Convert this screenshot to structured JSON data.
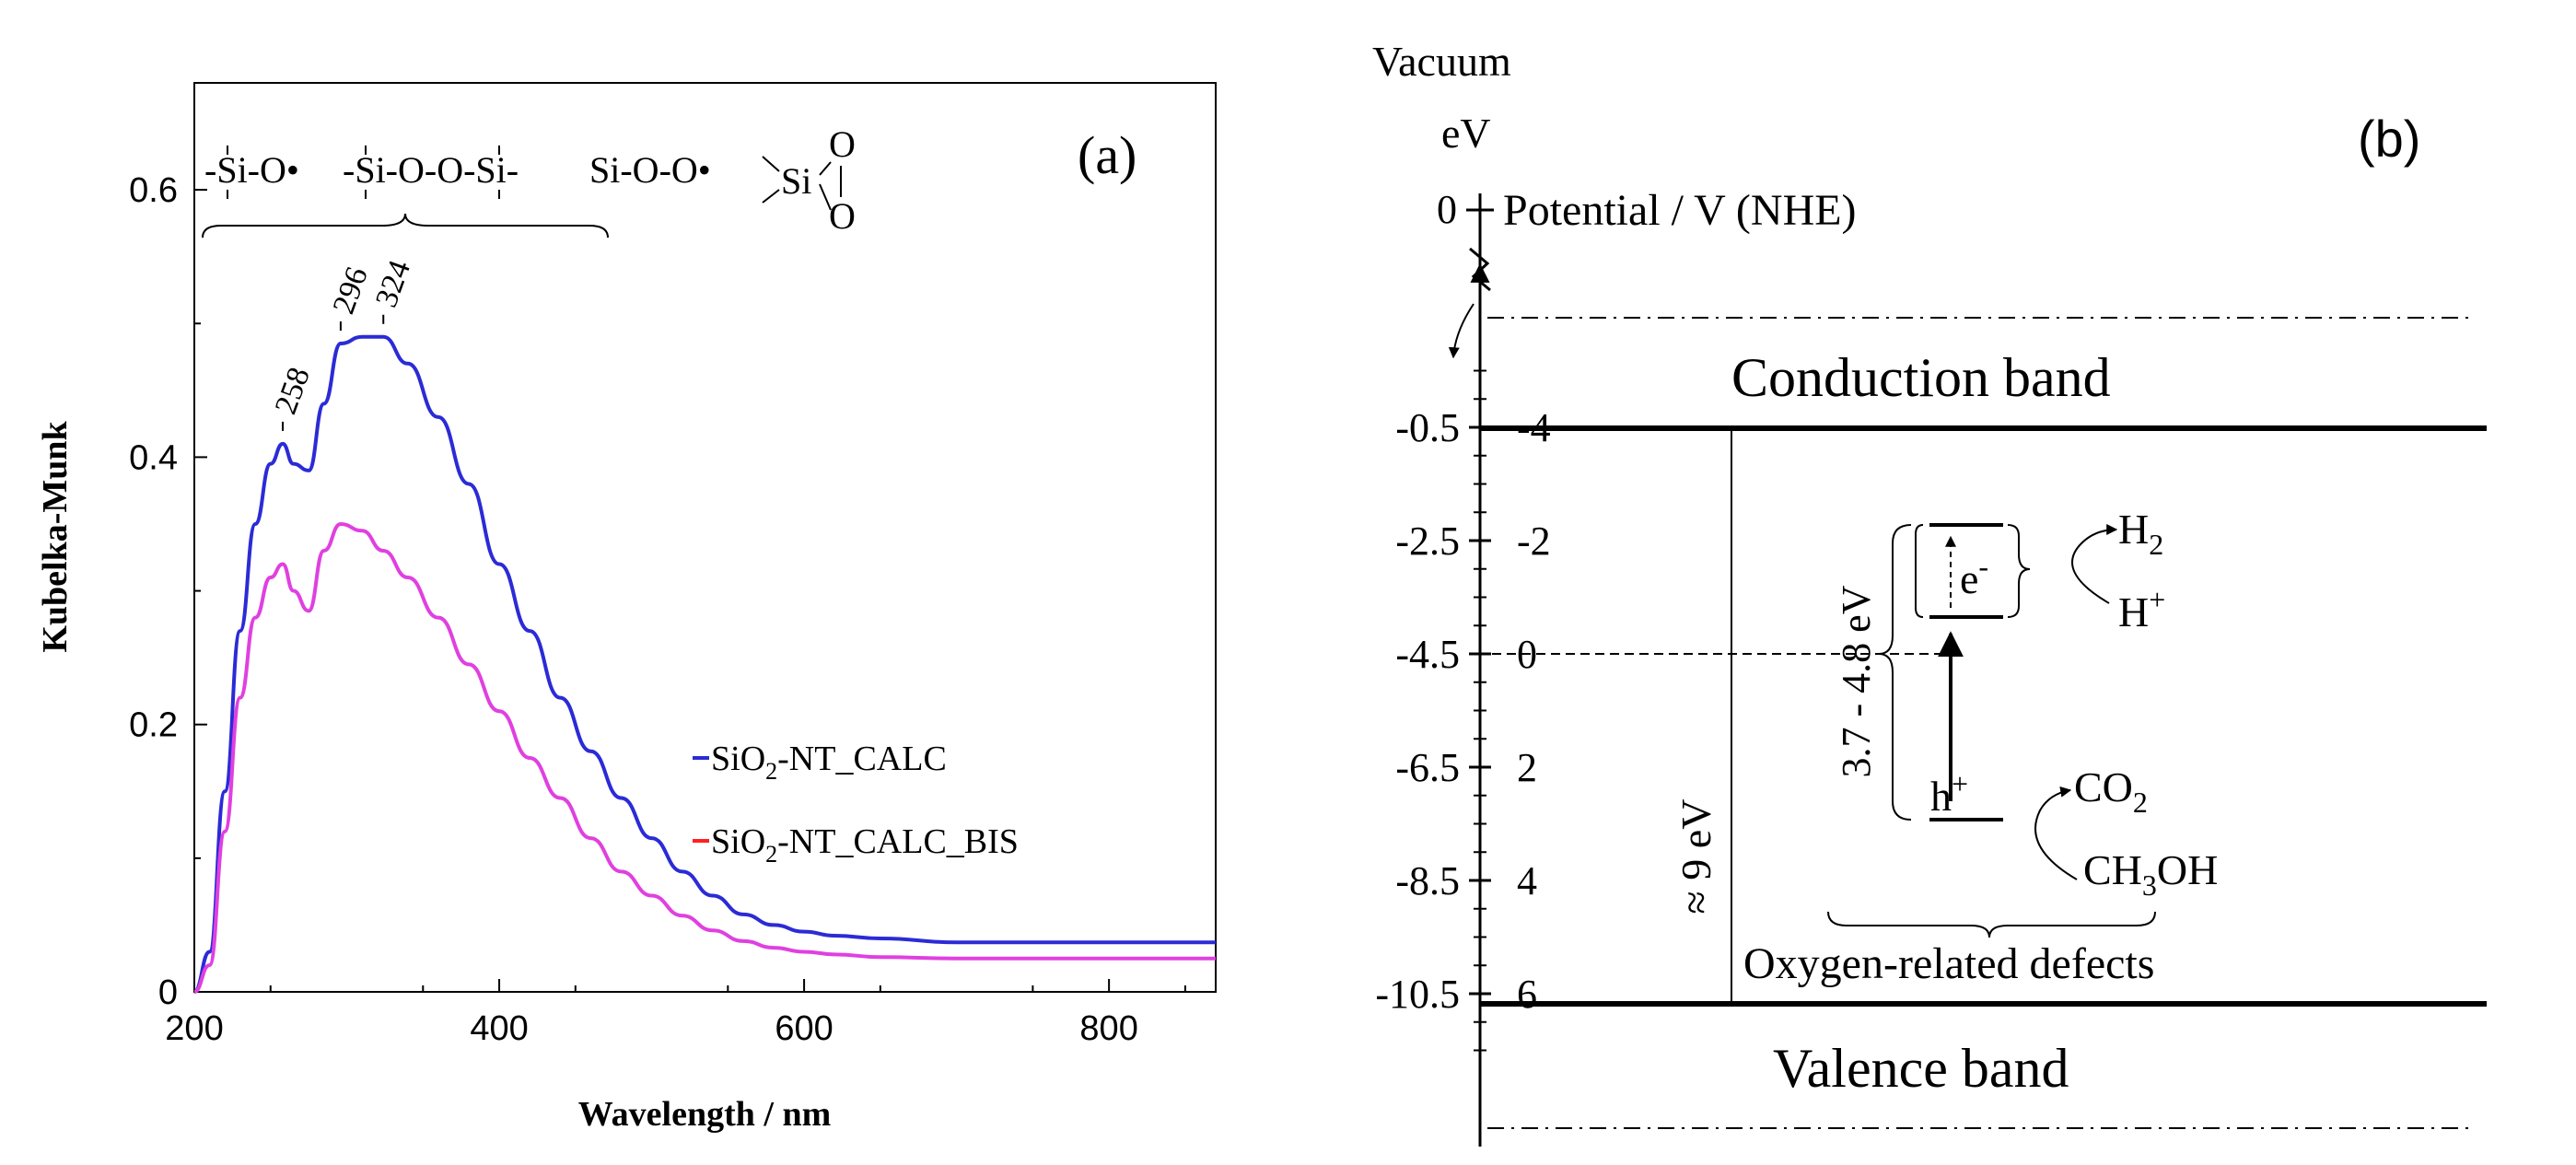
{
  "colors": {
    "series_calc": "#2b2bd6",
    "series_calc_bis": "#e040e0",
    "legend_bis_dash": "#ff2020",
    "axis": "#000000"
  },
  "chart_data": [
    {
      "type": "line",
      "panel_label": "(a)",
      "xlabel": "Wavelength / nm",
      "ylabel": "Kubelka-Munk",
      "xlim": [
        200,
        870
      ],
      "ylim": [
        0,
        0.68
      ],
      "x_ticks": [
        200,
        400,
        600,
        800
      ],
      "x_tick_labels": [
        "200",
        "400",
        "600",
        "800"
      ],
      "y_ticks": [
        0,
        0.2,
        0.4,
        0.6
      ],
      "y_tick_labels": [
        "0",
        "0.2",
        "0.4",
        "0.6"
      ],
      "structures": [
        "-Si-O•",
        "-Si-O-O-Si-",
        "Si-O-O•",
        "Si",
        "O",
        "O"
      ],
      "peak_labels": [
        {
          "wavelength": 258,
          "label": "258"
        },
        {
          "wavelength": 296,
          "label": "296"
        },
        {
          "wavelength": 324,
          "label": "324"
        }
      ],
      "series": [
        {
          "name": "SiO2-NT_CALC",
          "legend_main": "SiO",
          "legend_sub": "2",
          "legend_rest": "-NT_CALC",
          "x": [
            200,
            210,
            220,
            230,
            240,
            250,
            258,
            265,
            275,
            285,
            296,
            310,
            324,
            340,
            360,
            380,
            400,
            420,
            440,
            460,
            480,
            500,
            520,
            540,
            560,
            580,
            600,
            620,
            650,
            700,
            750,
            800,
            870
          ],
          "y": [
            0.0,
            0.03,
            0.15,
            0.27,
            0.35,
            0.395,
            0.41,
            0.395,
            0.39,
            0.44,
            0.485,
            0.49,
            0.49,
            0.47,
            0.43,
            0.38,
            0.32,
            0.27,
            0.22,
            0.18,
            0.145,
            0.115,
            0.09,
            0.072,
            0.058,
            0.05,
            0.045,
            0.042,
            0.04,
            0.037,
            0.037,
            0.037,
            0.037
          ]
        },
        {
          "name": "SiO2-NT_CALC_BIS",
          "legend_main": "SiO",
          "legend_sub": "2",
          "legend_rest": "-NT_CALC_BIS",
          "x": [
            200,
            210,
            220,
            230,
            240,
            250,
            258,
            265,
            275,
            285,
            296,
            310,
            324,
            340,
            360,
            380,
            400,
            420,
            440,
            460,
            480,
            500,
            520,
            540,
            560,
            580,
            600,
            620,
            650,
            700,
            750,
            800,
            870
          ],
          "y": [
            0.0,
            0.02,
            0.12,
            0.22,
            0.28,
            0.31,
            0.32,
            0.3,
            0.285,
            0.33,
            0.35,
            0.345,
            0.33,
            0.31,
            0.28,
            0.245,
            0.21,
            0.175,
            0.145,
            0.115,
            0.09,
            0.072,
            0.057,
            0.046,
            0.038,
            0.033,
            0.03,
            0.028,
            0.026,
            0.025,
            0.025,
            0.025,
            0.025
          ]
        }
      ]
    },
    {
      "type": "diagram",
      "panel_label": "(b)",
      "top_label": "Vacuum",
      "unit_left": "eV",
      "zero_label": "0",
      "potential_axis_label": "Potential / V (NHE)",
      "left_ticks": [
        "-0.5",
        "-2.5",
        "-4.5",
        "-6.5",
        "-8.5",
        "-10.5"
      ],
      "left_tick_values": [
        -0.5,
        -2.5,
        -4.5,
        -6.5,
        -8.5,
        -10.5
      ],
      "right_ticks": [
        "-4",
        "-2",
        "0",
        "2",
        "4",
        "6"
      ],
      "right_tick_values": [
        -4,
        -2,
        0,
        2,
        4,
        6
      ],
      "conduction_band": "Conduction band",
      "valence_band": "Valence band",
      "band_gap": "≈ 9 eV",
      "defect_gap": "3.7 - 4.8 eV",
      "electron": "e",
      "electron_sup": "-",
      "hole": "h",
      "hole_sup": "+",
      "h2": "H",
      "h2_sub": "2",
      "proton": "H",
      "proton_sup": "+",
      "co2": "CO",
      "co2_sub": "2",
      "methanol_a": "CH",
      "methanol_sub": "3",
      "methanol_b": "OH",
      "defects_label": "Oxygen-related defects"
    }
  ]
}
